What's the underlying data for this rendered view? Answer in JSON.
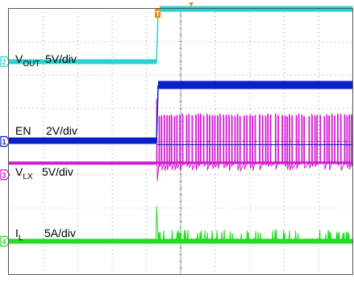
{
  "chart_data": {
    "type": "line",
    "title": "",
    "grid": true,
    "divisions": {
      "x": 10,
      "y": 8
    },
    "colors": {
      "VOUT": "#29d3d3",
      "EN": "#0a1fc8",
      "VLX": "#d21ad2",
      "IL": "#22dd22",
      "grid": "#9a9a9a",
      "border": "#555555",
      "trigger": "#ee8a10"
    },
    "trigger": {
      "marker": "T",
      "event_div": 4.3
    },
    "series": [
      {
        "key": "VOUT",
        "label_main": "V",
        "label_sub": "OUT",
        "scale": "5V/div",
        "channel_marker": "2",
        "pre_level_div": 6.4,
        "post_level_div": 8.0,
        "transition_div": 4.3
      },
      {
        "key": "EN",
        "label_main": "EN",
        "label_sub": "",
        "scale": "2V/div",
        "channel_marker": "1",
        "pre_level_div": 4.0,
        "post_level_div": 5.7,
        "transition_div": 4.3
      },
      {
        "key": "VLX",
        "label_main": "V",
        "label_sub": "LX",
        "scale": "5V/div",
        "channel_marker": "3",
        "low_level_div": 3.35,
        "high_level_div": 4.8,
        "switching_start_div": 4.3
      },
      {
        "key": "IL",
        "label_main": "I",
        "label_sub": "L",
        "scale": "5A/div",
        "channel_marker": "4",
        "baseline_div": 1.0,
        "spike_peak_div": 2.05,
        "ripple_peak_div": 1.35,
        "activity_start_div": 4.3
      }
    ]
  }
}
